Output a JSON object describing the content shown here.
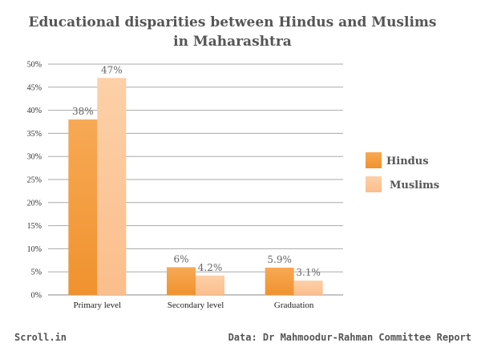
{
  "chart_data": {
    "type": "bar",
    "title": [
      "Educational disparities between Hindus and Muslims",
      "in Maharashtra"
    ],
    "categories": [
      "Primary level",
      "Secondary level",
      "Graduation"
    ],
    "series": [
      {
        "name": "Hindus",
        "values": [
          38,
          6,
          5.9
        ],
        "labels": [
          "38%",
          "6%",
          "5.9%"
        ],
        "color": "#F39A3A"
      },
      {
        "name": "Muslims",
        "values": [
          47,
          4.2,
          3.1
        ],
        "labels": [
          "47%",
          "4.2%",
          "3.1%"
        ],
        "color": "#FCC69A"
      }
    ],
    "ylim": [
      0,
      50
    ],
    "yticks": [
      "0%",
      "5%",
      "10%",
      "15%",
      "20%",
      "25%",
      "30%",
      "35%",
      "40%",
      "45%",
      "50%"
    ],
    "grid": true,
    "legend": "right"
  },
  "footer": {
    "left": "Scroll.in",
    "right": "Data: Dr Mahmoodur-Rahman Committee Report"
  }
}
